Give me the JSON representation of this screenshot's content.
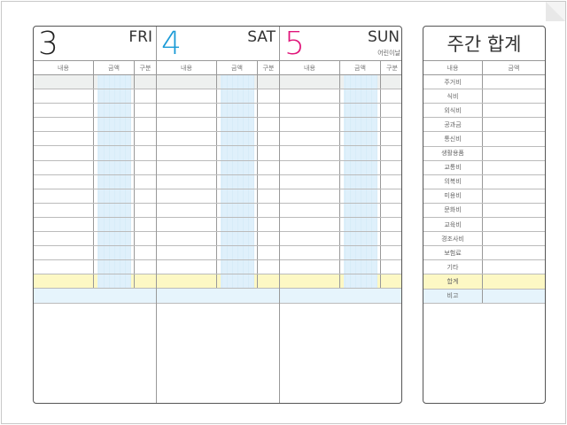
{
  "days": [
    {
      "num": "3",
      "weekday": "FRI",
      "holiday": "",
      "color": "#222222"
    },
    {
      "num": "4",
      "weekday": "SAT",
      "holiday": "",
      "color": "#1a9ad6"
    },
    {
      "num": "5",
      "weekday": "SUN",
      "holiday": "어린이날",
      "color": "#e0157a"
    }
  ],
  "columns": {
    "content": "내용",
    "amount": "금액",
    "type": "구분"
  },
  "entry_rows": 14,
  "weekly": {
    "title": "주간 합계",
    "col_content": "내용",
    "col_amount": "금액",
    "items": [
      "주거비",
      "식비",
      "외식비",
      "공과금",
      "통신비",
      "생활용품",
      "교통비",
      "의복비",
      "미용비",
      "문화비",
      "교육비",
      "경조사비",
      "보험료",
      "기타"
    ],
    "total": "합계",
    "note": "비고"
  },
  "colors": {
    "total_row": "#fdf8c4",
    "note_row": "#e6f4fc",
    "amount_stripe": "#dff0fb"
  }
}
